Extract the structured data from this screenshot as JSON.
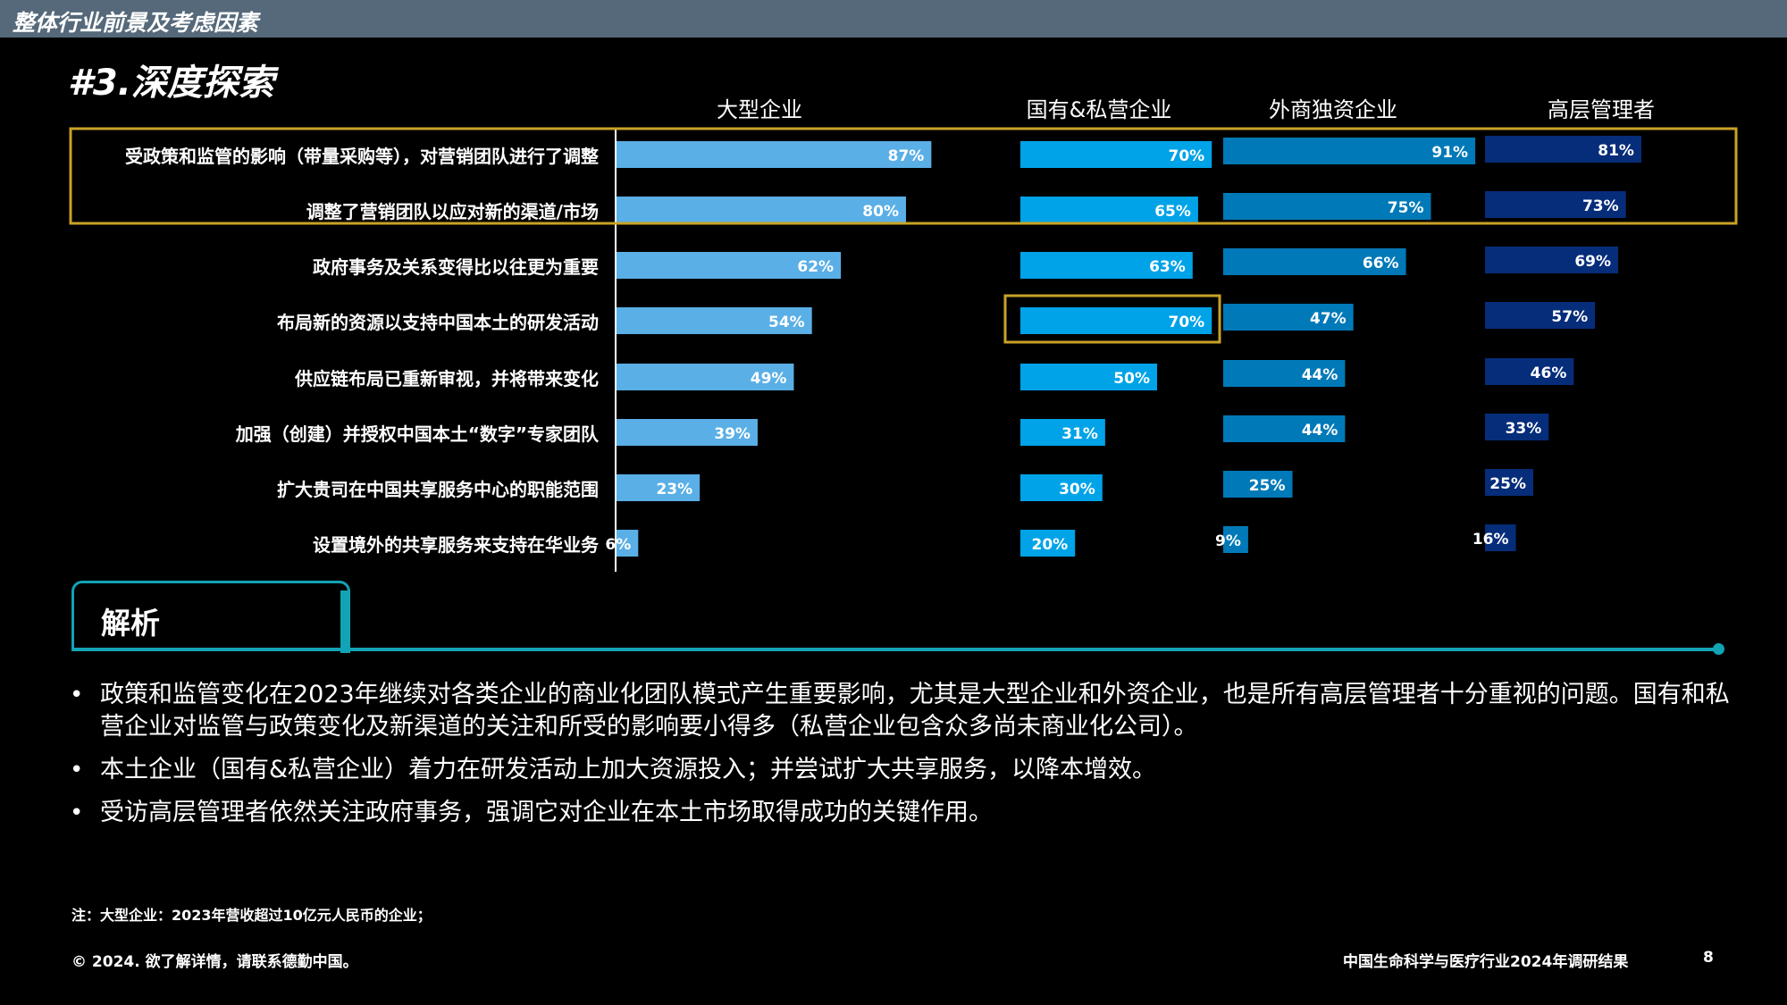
{
  "top_bar": {
    "title": "整体行业前景及考虑因素"
  },
  "page_heading": "#3.深度探索",
  "chart_data": {
    "type": "bar",
    "orientation": "horizontal",
    "categories": [
      "受政策和监管的影响（带量采购等），对营销团队进行了调整",
      "调整了营销团队以应对新的渠道/市场",
      "政府事务及关系变得比以往更为重要",
      "布局新的资源以支持中国本土的研发活动",
      "供应链布局已重新审视，并将带来变化",
      "加强（创建）并授权中国本土“数字”专家团队",
      "扩大贵司在中国共享服务中心的职能范围",
      "设置境外的共享服务来支持在华业务"
    ],
    "series": [
      {
        "name": "大型企业",
        "color": "#5aafe6",
        "values": [
          87,
          80,
          62,
          54,
          49,
          39,
          23,
          6
        ],
        "labels": [
          "87%",
          "80%",
          "62%",
          "54%",
          "49%",
          "39%",
          "23%",
          "6%"
        ]
      },
      {
        "name": "国有&私营企业",
        "color": "#00a3e8",
        "values": [
          70,
          65,
          63,
          70,
          50,
          31,
          30,
          20
        ],
        "labels": [
          "70%",
          "65%",
          "63%",
          "70%",
          "50%",
          "31%",
          "30%",
          "20%"
        ]
      },
      {
        "name": "外商独资企业",
        "color": "#0079b8",
        "values": [
          91,
          75,
          66,
          47,
          44,
          44,
          25,
          9
        ],
        "labels": [
          "91%",
          "75%",
          "66%",
          "47%",
          "44%",
          "44%",
          "25%",
          "9%"
        ]
      },
      {
        "name": "高层管理者",
        "color": "#062d7a",
        "values": [
          81,
          73,
          69,
          57,
          46,
          33,
          25,
          16
        ],
        "labels": [
          "81%",
          "73%",
          "69%",
          "57%",
          "46%",
          "33%",
          "25%",
          "16%"
        ]
      }
    ],
    "xlim": [
      0,
      100
    ],
    "highlights": [
      {
        "rows": [
          0,
          1
        ],
        "series": "all",
        "color": "#c9a227"
      },
      {
        "rows": [
          3
        ],
        "series": 1,
        "color": "#c9a227"
      }
    ]
  },
  "analysis": {
    "title": "解析",
    "bullets": [
      "政策和监管变化在2023年继续对各类企业的商业化团队模式产生重要影响，尤其是大型企业和外资企业，也是所有高层管理者十分重视的问题。国有和私营企业对监管与政策变化及新渠道的关注和所受的影响要小得多（私营企业包含众多尚未商业化公司）。",
      "本土企业（国有&私营企业）着力在研发活动上加大资源投入；并尝试扩大共享服务，以降本增效。",
      "受访高层管理者依然关注政府事务，强调它对企业在本土市场取得成功的关键作用。"
    ]
  },
  "footnote": "注：大型企业：2023年营收超过10亿元人民币的企业；",
  "footer": {
    "copyright": "© 2024. 欲了解详情，请联系德勤中国。",
    "report_title": "中国生命科学与医疗行业2024年调研结果",
    "page_number": "8"
  }
}
